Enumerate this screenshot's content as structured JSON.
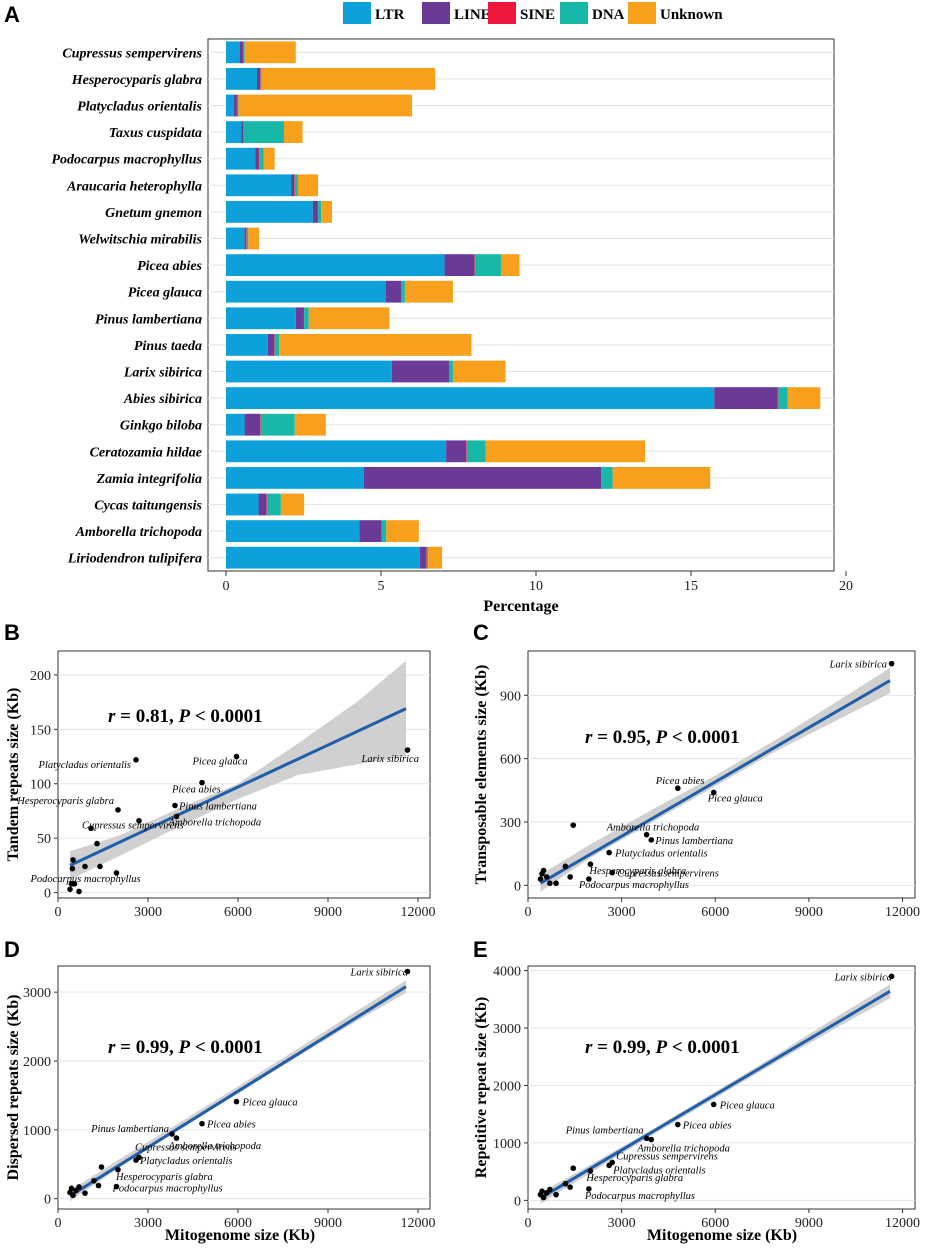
{
  "colors": {
    "LTR": "#0DA0DB",
    "LINE": "#6B3A96",
    "SINE": "#F0173C",
    "DNA": "#17B8A8",
    "Unknown": "#F8A01C",
    "regression_line": "#1F5EA8",
    "ci_band": "#C8C8C8",
    "point": "#000000"
  },
  "panels": {
    "A": {
      "letter": "A",
      "chart_data": {
        "type": "bar",
        "orientation": "horizontal",
        "stacked": true,
        "title": "",
        "xlabel": "Percentage",
        "ylabel": "",
        "xlim": [
          0,
          20
        ],
        "xticks": [
          "0",
          "5",
          "10",
          "15",
          "20"
        ],
        "legend_position": "top",
        "categories": [
          "Cupressus sempervirens",
          "Hesperocyparis glabra",
          "Platycladus orientalis",
          "Taxus cuspidata",
          "Podocarpus macrophyllus",
          "Araucaria heterophylla",
          "Gnetum gnemon",
          "Welwitschia mirabilis",
          "Picea abies",
          "Picea glauca",
          "Pinus lambertiana",
          "Pinus taeda",
          "Larix sibirica",
          "Abies sibirica",
          "Ginkgo biloba",
          "Ceratozamia hildae",
          "Zamia integrifolia",
          "Cycas taitungensis",
          "Amborella trichopoda",
          "Liriodendron tulipifera"
        ],
        "series": [
          {
            "name": "LTR",
            "values": [
              0.45,
              1.0,
              0.25,
              0.5,
              0.95,
              2.1,
              2.8,
              0.6,
              7.05,
              5.15,
              2.25,
              1.35,
              5.35,
              15.75,
              0.6,
              7.1,
              4.45,
              1.05,
              4.3,
              6.25
            ]
          },
          {
            "name": "LINE",
            "values": [
              0.1,
              0.1,
              0.1,
              0.05,
              0.1,
              0.1,
              0.15,
              0.05,
              0.95,
              0.5,
              0.25,
              0.2,
              1.85,
              2.05,
              0.5,
              0.65,
              7.65,
              0.25,
              0.7,
              0.2
            ]
          },
          {
            "name": "SINE",
            "values": [
              0.02,
              0.02,
              0.02,
              0.02,
              0.02,
              0.02,
              0.02,
              0.02,
              0.02,
              0.02,
              0.02,
              0.02,
              0.02,
              0.02,
              0.02,
              0.02,
              0.02,
              0.02,
              0.02,
              0.02
            ]
          },
          {
            "name": "DNA",
            "values": [
              0.03,
              0.03,
              0.03,
              1.3,
              0.15,
              0.1,
              0.1,
              0.05,
              0.85,
              0.1,
              0.15,
              0.15,
              0.1,
              0.3,
              1.1,
              0.6,
              0.35,
              0.45,
              0.15,
              0.05
            ]
          },
          {
            "name": "Unknown",
            "values": [
              1.65,
              5.6,
              5.6,
              0.6,
              0.35,
              0.65,
              0.35,
              0.35,
              0.6,
              1.55,
              2.6,
              6.2,
              1.7,
              1.05,
              1.0,
              5.15,
              3.15,
              0.75,
              1.05,
              0.45
            ]
          }
        ]
      }
    },
    "B": {
      "letter": "B",
      "stat": {
        "r": "r",
        "r_value": " = 0.81, ",
        "p": "P",
        "p_value": " < 0.0001"
      },
      "chart_data": {
        "type": "scatter",
        "xlabel": "",
        "ylabel": "Tandem repeats size (Kb)",
        "xlim": [
          0,
          12400
        ],
        "ylim": [
          -5,
          222
        ],
        "xticks": [
          0,
          3000,
          6000,
          9000,
          12000
        ],
        "yticks": [
          0,
          50,
          100,
          150,
          200
        ],
        "fit": {
          "x": [
            400,
            11600
          ],
          "y": [
            25,
            169
          ]
        },
        "ci": {
          "x": [
            400,
            2000,
            4000,
            6000,
            8000,
            10000,
            11600
          ],
          "lower": [
            12,
            33,
            60,
            86,
            108,
            118,
            125
          ],
          "upper": [
            38,
            52,
            77,
            100,
            137,
            176,
            213
          ]
        },
        "points": [
          {
            "x": 400,
            "y": 3,
            "label": ""
          },
          {
            "x": 450,
            "y": 8,
            "label": ""
          },
          {
            "x": 480,
            "y": 22,
            "label": ""
          },
          {
            "x": 500,
            "y": 30,
            "label": ""
          },
          {
            "x": 550,
            "y": 8,
            "label": ""
          },
          {
            "x": 700,
            "y": 1,
            "label": ""
          },
          {
            "x": 900,
            "y": 24,
            "label": ""
          },
          {
            "x": 1100,
            "y": 59,
            "label": ""
          },
          {
            "x": 1300,
            "y": 45,
            "label": ""
          },
          {
            "x": 1400,
            "y": 24,
            "label": ""
          },
          {
            "x": 1950,
            "y": 18,
            "label": "Podocarpus macrophyllus"
          },
          {
            "x": 2000,
            "y": 76,
            "label": "Hesperocyparis glabra"
          },
          {
            "x": 2600,
            "y": 122,
            "label": "Platycladus orientalis"
          },
          {
            "x": 2700,
            "y": 66,
            "label": "Cupressus sempervirens"
          },
          {
            "x": 3900,
            "y": 80,
            "label": "Pinus lambertiana"
          },
          {
            "x": 3950,
            "y": 70,
            "label": "Amborella trichopoda"
          },
          {
            "x": 4800,
            "y": 101,
            "label": "Picea abies"
          },
          {
            "x": 5950,
            "y": 125,
            "label": "Picea glauca"
          },
          {
            "x": 11650,
            "y": 131,
            "label": "Larix sibirica"
          }
        ]
      }
    },
    "C": {
      "letter": "C",
      "stat": {
        "r": "r",
        "r_value": " = 0.95, ",
        "p": "P",
        "p_value": " < 0.0001"
      },
      "chart_data": {
        "type": "scatter",
        "xlabel": "",
        "ylabel": "Transposable elements size (Kb)",
        "xlim": [
          0,
          12400
        ],
        "ylim": [
          -60,
          1110
        ],
        "xticks": [
          0,
          3000,
          6000,
          9000,
          12000
        ],
        "yticks": [
          0,
          300,
          600,
          900
        ],
        "fit": {
          "x": [
            400,
            11600
          ],
          "y": [
            10,
            970
          ]
        },
        "ci": {
          "x": [
            400,
            2000,
            4000,
            6000,
            8000,
            10000,
            11600
          ],
          "lower": [
            -30,
            130,
            300,
            470,
            640,
            790,
            910
          ],
          "upper": [
            50,
            195,
            360,
            520,
            695,
            880,
            1030
          ]
        },
        "points": [
          {
            "x": 400,
            "y": 30,
            "label": ""
          },
          {
            "x": 450,
            "y": 55,
            "label": ""
          },
          {
            "x": 500,
            "y": 70,
            "label": ""
          },
          {
            "x": 600,
            "y": 40,
            "label": ""
          },
          {
            "x": 700,
            "y": 10,
            "label": ""
          },
          {
            "x": 900,
            "y": 10,
            "label": ""
          },
          {
            "x": 1200,
            "y": 90,
            "label": ""
          },
          {
            "x": 1350,
            "y": 40,
            "label": ""
          },
          {
            "x": 1450,
            "y": 285,
            "label": ""
          },
          {
            "x": 1950,
            "y": 30,
            "label": "Podocarpus macrophyllus"
          },
          {
            "x": 2000,
            "y": 100,
            "label": "Hesperocyparis glabra"
          },
          {
            "x": 2600,
            "y": 155,
            "label": "Platycladus orientalis"
          },
          {
            "x": 2700,
            "y": 60,
            "label": "Cupressus sempervirens"
          },
          {
            "x": 3800,
            "y": 240,
            "label": "Amborella trichopoda"
          },
          {
            "x": 3950,
            "y": 215,
            "label": "Pinus lambertiana"
          },
          {
            "x": 4800,
            "y": 460,
            "label": "Picea abies"
          },
          {
            "x": 5950,
            "y": 440,
            "label": "Picea glauca"
          },
          {
            "x": 11650,
            "y": 1050,
            "label": "Larix sibirica"
          }
        ]
      }
    },
    "D": {
      "letter": "D",
      "stat": {
        "r": "r",
        "r_value": " = 0.99, ",
        "p": "P",
        "p_value": " < 0.0001"
      },
      "chart_data": {
        "type": "scatter",
        "xlabel": "Mitogenome size (Kb)",
        "ylabel": "Dispersed repeats size (Kb)",
        "xlim": [
          0,
          12400
        ],
        "ylim": [
          -150,
          3380
        ],
        "xticks": [
          0,
          3000,
          6000,
          9000,
          12000
        ],
        "yticks": [
          0,
          1000,
          2000,
          3000
        ],
        "fit": {
          "x": [
            400,
            11600
          ],
          "y": [
            40,
            3080
          ]
        },
        "ci": {
          "x": [
            400,
            2000,
            4000,
            6000,
            8000,
            10000,
            11600
          ],
          "lower": [
            -40,
            440,
            990,
            1530,
            2070,
            2590,
            2990
          ],
          "upper": [
            120,
            560,
            1090,
            1630,
            2180,
            2740,
            3170
          ]
        },
        "points": [
          {
            "x": 400,
            "y": 90,
            "label": ""
          },
          {
            "x": 450,
            "y": 150,
            "label": ""
          },
          {
            "x": 500,
            "y": 50,
            "label": ""
          },
          {
            "x": 600,
            "y": 120,
            "label": ""
          },
          {
            "x": 700,
            "y": 170,
            "label": ""
          },
          {
            "x": 900,
            "y": 80,
            "label": ""
          },
          {
            "x": 1200,
            "y": 260,
            "label": ""
          },
          {
            "x": 1350,
            "y": 190,
            "label": ""
          },
          {
            "x": 1450,
            "y": 460,
            "label": ""
          },
          {
            "x": 1950,
            "y": 175,
            "label": "Podocarpus macrophyllus"
          },
          {
            "x": 2000,
            "y": 420,
            "label": "Hesperocyparis glabra"
          },
          {
            "x": 2600,
            "y": 560,
            "label": "Platycladus orientalis"
          },
          {
            "x": 2700,
            "y": 600,
            "label": "Cupressus sempervirens"
          },
          {
            "x": 3800,
            "y": 940,
            "label": "Pinus lambertiana"
          },
          {
            "x": 3950,
            "y": 880,
            "label": "Amborella trichopoda"
          },
          {
            "x": 4800,
            "y": 1090,
            "label": "Picea abies"
          },
          {
            "x": 5950,
            "y": 1410,
            "label": "Picea glauca"
          },
          {
            "x": 11650,
            "y": 3300,
            "label": "Larix sibirica"
          }
        ]
      }
    },
    "E": {
      "letter": "E",
      "stat": {
        "r": "r",
        "r_value": " = 0.99, ",
        "p": "P",
        "p_value": " < 0.0001"
      },
      "chart_data": {
        "type": "scatter",
        "xlabel": "Mitogenome size (Kb)",
        "ylabel": "Repetitive repeat size (Kb)",
        "xlim": [
          0,
          12400
        ],
        "ylim": [
          -150,
          4080
        ],
        "xticks": [
          0,
          3000,
          6000,
          9000,
          12000
        ],
        "yticks": [
          0,
          1000,
          2000,
          3000,
          4000
        ],
        "fit": {
          "x": [
            400,
            11600
          ],
          "y": [
            40,
            3640
          ]
        },
        "ci": {
          "x": [
            400,
            2000,
            4000,
            6000,
            8000,
            10000,
            11600
          ],
          "lower": [
            -60,
            480,
            1140,
            1780,
            2420,
            3040,
            3520
          ],
          "upper": [
            130,
            620,
            1240,
            1890,
            2550,
            3230,
            3760
          ]
        },
        "points": [
          {
            "x": 400,
            "y": 100,
            "label": ""
          },
          {
            "x": 450,
            "y": 160,
            "label": ""
          },
          {
            "x": 500,
            "y": 50,
            "label": ""
          },
          {
            "x": 600,
            "y": 130,
            "label": ""
          },
          {
            "x": 700,
            "y": 190,
            "label": ""
          },
          {
            "x": 900,
            "y": 100,
            "label": ""
          },
          {
            "x": 1200,
            "y": 290,
            "label": ""
          },
          {
            "x": 1350,
            "y": 230,
            "label": ""
          },
          {
            "x": 1450,
            "y": 560,
            "label": ""
          },
          {
            "x": 1950,
            "y": 200,
            "label": "Podocarpus macrophyllus"
          },
          {
            "x": 2000,
            "y": 510,
            "label": "Hesperocyparis glabra"
          },
          {
            "x": 2600,
            "y": 610,
            "label": "Platycladus orientalis"
          },
          {
            "x": 2700,
            "y": 660,
            "label": "Cupressus sempervirens"
          },
          {
            "x": 3800,
            "y": 1080,
            "label": "Pinus lambertiana"
          },
          {
            "x": 3950,
            "y": 1060,
            "label": "Amborella trichopoda"
          },
          {
            "x": 4800,
            "y": 1320,
            "label": "Picea abies"
          },
          {
            "x": 5950,
            "y": 1670,
            "label": "Picea glauca"
          },
          {
            "x": 11650,
            "y": 3900,
            "label": "Larix sibirica"
          }
        ]
      }
    }
  }
}
